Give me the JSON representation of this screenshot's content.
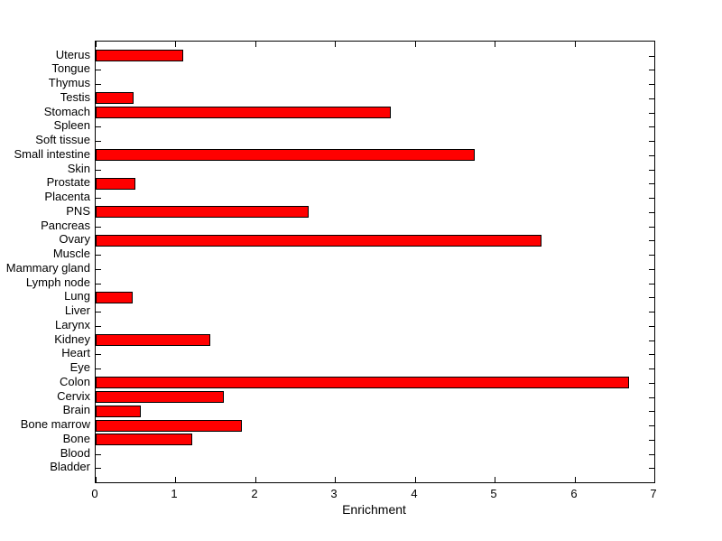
{
  "chart_data": {
    "type": "bar",
    "orientation": "horizontal",
    "title": "",
    "xlabel": "Enrichment",
    "ylabel": "",
    "xlim": [
      0,
      7
    ],
    "xticks": [
      "0",
      "1",
      "2",
      "3",
      "4",
      "5",
      "6",
      "7"
    ],
    "grid": false,
    "bar_color": "#FF0000",
    "bar_edge_color": "#000000",
    "axis_color": "#000000",
    "background_color": "#FFFFFF",
    "categories": [
      "Uterus",
      "Tongue",
      "Thymus",
      "Testis",
      "Stomach",
      "Spleen",
      "Soft tissue",
      "Small intestine",
      "Skin",
      "Prostate",
      "Placenta",
      "PNS",
      "Pancreas",
      "Ovary",
      "Muscle",
      "Mammary gland",
      "Lymph node",
      "Lung",
      "Liver",
      "Larynx",
      "Kidney",
      "Heart",
      "Eye",
      "Colon",
      "Cervix",
      "Brain",
      "Bone marrow",
      "Bone",
      "Blood",
      "Bladder"
    ],
    "values": [
      1.1,
      0,
      0,
      0.48,
      3.7,
      0,
      0,
      4.75,
      0,
      0.5,
      0,
      2.67,
      0,
      5.59,
      0,
      0,
      0,
      0.46,
      0,
      0,
      1.44,
      0,
      0,
      6.68,
      1.61,
      0.56,
      1.83,
      1.21,
      0,
      0
    ]
  }
}
